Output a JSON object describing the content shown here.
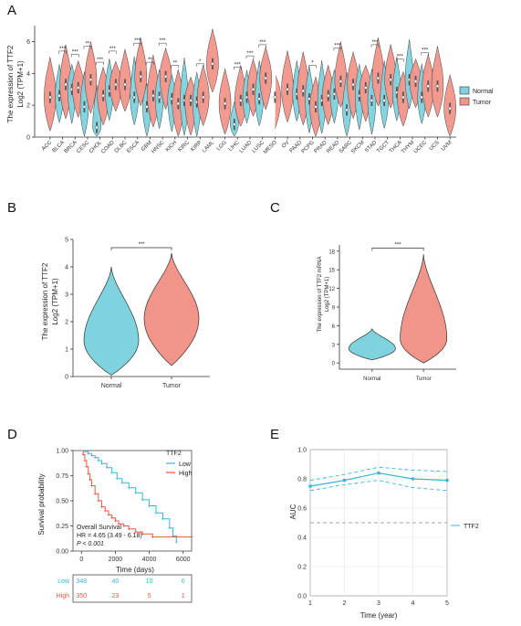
{
  "colors": {
    "normal": "#7ed3df",
    "tumor": "#f1958a",
    "low": "#37b6d8",
    "high": "#e8583f"
  },
  "panels": {
    "A": "A",
    "B": "B",
    "C": "C",
    "D": "D",
    "E": "E"
  },
  "chart_data": [
    {
      "panel": "A",
      "type": "violin",
      "ylabel_line1": "The expression of TTF2",
      "ylabel_line2": "Log2 (TPM+1)",
      "ylim": [
        0,
        7
      ],
      "yticks": [
        0,
        2,
        4,
        6
      ],
      "legend": {
        "normal": "Normal",
        "tumor": "Tumor"
      },
      "categories": [
        {
          "name": "ACC",
          "tumor": 2.5,
          "sig": ""
        },
        {
          "name": "BLCA",
          "normal": 2.6,
          "tumor": 3.3,
          "sig": "***"
        },
        {
          "name": "BRCA",
          "normal": 3.0,
          "tumor": 3.1,
          "sig": "***"
        },
        {
          "name": "CESC",
          "normal": 1.9,
          "tumor": 3.6,
          "sig": "**"
        },
        {
          "name": "CHOL",
          "normal": 0.6,
          "tumor": 2.6,
          "sig": "***"
        },
        {
          "name": "COAD",
          "normal": 2.9,
          "tumor": 3.3,
          "sig": "***"
        },
        {
          "name": "DLBC",
          "tumor": 3.3,
          "sig": ""
        },
        {
          "name": "ESCA",
          "normal": 2.5,
          "tumor": 3.8,
          "sig": "***"
        },
        {
          "name": "GBM",
          "normal": 1.9,
          "tumor": 2.6,
          "sig": "**"
        },
        {
          "name": "HNSC",
          "normal": 2.5,
          "tumor": 3.8,
          "sig": "***"
        },
        {
          "name": "KICH",
          "normal": 2.4,
          "tumor": 2.1,
          "sig": "**"
        },
        {
          "name": "KIRC",
          "normal": 2.3,
          "tumor": 2.3,
          "sig": ""
        },
        {
          "name": "KIRP",
          "normal": 2.2,
          "tumor": 2.5,
          "sig": "*"
        },
        {
          "name": "LAML",
          "tumor": 4.6,
          "sig": ""
        },
        {
          "name": "LGG",
          "tumor": 2.1,
          "sig": ""
        },
        {
          "name": "LIHC",
          "normal": 0.8,
          "tumor": 2.3,
          "sig": "***"
        },
        {
          "name": "LUAD",
          "normal": 2.5,
          "tumor": 3.0,
          "sig": "***"
        },
        {
          "name": "LUSC",
          "normal": 2.4,
          "tumor": 3.7,
          "sig": "***"
        },
        {
          "name": "MESO",
          "tumor": 2.5,
          "sig": ""
        },
        {
          "name": "OV",
          "tumor": 3.0,
          "sig": ""
        },
        {
          "name": "PAAD",
          "normal": 2.7,
          "tumor": 2.9,
          "sig": ""
        },
        {
          "name": "PCPG",
          "normal": 2.4,
          "tumor": 1.9,
          "sig": "*"
        },
        {
          "name": "PRAD",
          "normal": 2.3,
          "tumor": 2.6,
          "sig": ""
        },
        {
          "name": "READ",
          "normal": 2.7,
          "tumor": 3.5,
          "sig": "***"
        },
        {
          "name": "SARC",
          "normal": 1.7,
          "tumor": 3.3,
          "sig": ""
        },
        {
          "name": "SKCM",
          "normal": 2.6,
          "tumor": 3.1,
          "sig": ""
        },
        {
          "name": "STAD",
          "normal": 2.3,
          "tumor": 3.7,
          "sig": "***"
        },
        {
          "name": "TGCT",
          "normal": 2.3,
          "tumor": 3.6,
          "sig": ""
        },
        {
          "name": "THCA",
          "normal": 2.8,
          "tumor": 2.5,
          "sig": "***"
        },
        {
          "name": "THYM",
          "normal": 3.6,
          "tumor": 3.5,
          "sig": ""
        },
        {
          "name": "UCEC",
          "normal": 2.5,
          "tumor": 3.2,
          "sig": "***"
        },
        {
          "name": "UCS",
          "tumor": 3.2,
          "sig": ""
        },
        {
          "name": "UVM",
          "tumor": 1.8,
          "sig": ""
        }
      ]
    },
    {
      "panel": "B",
      "type": "violin",
      "ylabel_line1": "The expression of TTF2",
      "ylabel_line2": "Log2 (TPM+1)",
      "ylim": [
        0,
        5
      ],
      "yticks": [
        0,
        1,
        2,
        3,
        4,
        5
      ],
      "categories": [
        "Normal",
        "Tumor"
      ],
      "medians": [
        1.3,
        2.1
      ],
      "ranges": [
        [
          0.05,
          4.0
        ],
        [
          0.4,
          4.5
        ]
      ],
      "significance": "***"
    },
    {
      "panel": "C",
      "type": "violin",
      "ylabel_line1": "The expression of TTF2 mRNA",
      "ylabel_line2": "Log2 (TPM+1)",
      "ylim": [
        -1,
        19
      ],
      "yticks": [
        0,
        3,
        6,
        9,
        12,
        15,
        18
      ],
      "categories": [
        "Normal",
        "Tumor"
      ],
      "medians": [
        2.3,
        3.8
      ],
      "ranges": [
        [
          0.5,
          5.5
        ],
        [
          0.0,
          17.5
        ]
      ],
      "significance": "***"
    },
    {
      "panel": "D",
      "type": "line",
      "xlabel": "Time (days)",
      "ylabel": "Survival probability",
      "xlim": [
        -500,
        6500
      ],
      "ylim": [
        0,
        1
      ],
      "xticks": [
        0,
        2000,
        4000,
        6000
      ],
      "yticks": [
        "0.00",
        "0.25",
        "0.50",
        "0.75",
        "1.00"
      ],
      "legend_title": "TTF2",
      "series": [
        {
          "name": "Low",
          "x": [
            0,
            200,
            400,
            600,
            800,
            1000,
            1200,
            1500,
            1800,
            2100,
            2400,
            2800,
            3200,
            3600,
            4000,
            4400,
            4800,
            5200,
            5400,
            5600
          ],
          "y": [
            1.0,
            0.99,
            0.97,
            0.95,
            0.93,
            0.9,
            0.87,
            0.83,
            0.78,
            0.72,
            0.68,
            0.63,
            0.58,
            0.51,
            0.45,
            0.38,
            0.32,
            0.23,
            0.15,
            0.09
          ]
        },
        {
          "name": "High",
          "x": [
            0,
            100,
            200,
            300,
            400,
            500,
            600,
            800,
            1000,
            1200,
            1400,
            1600,
            1800,
            2000,
            2200,
            2500,
            2800,
            3200,
            3600,
            4200,
            6500
          ],
          "y": [
            1.0,
            0.96,
            0.9,
            0.84,
            0.77,
            0.71,
            0.65,
            0.57,
            0.5,
            0.44,
            0.4,
            0.36,
            0.33,
            0.3,
            0.27,
            0.25,
            0.22,
            0.19,
            0.17,
            0.14,
            0.14
          ]
        }
      ],
      "annotation": {
        "line1": "Overall Survival",
        "line2": "HR = 4.65 (3.49 - 6.18)",
        "line3": "P < 0.001"
      },
      "risk_table": {
        "times": [
          0,
          2000,
          4000,
          6000
        ],
        "rows": [
          {
            "name": "Low",
            "counts": [
              "348",
              "40",
              "10",
              "0"
            ]
          },
          {
            "name": "High",
            "counts": [
              "350",
              "23",
              "5",
              "1"
            ]
          }
        ]
      }
    },
    {
      "panel": "E",
      "type": "line",
      "xlabel": "Time (year)",
      "ylabel": "AUC",
      "xlim": [
        1,
        5
      ],
      "ylim": [
        0,
        1
      ],
      "xticks": [
        1,
        2,
        3,
        4,
        5
      ],
      "yticks": [
        "0.0",
        "0.2",
        "0.4",
        "0.6",
        "0.8",
        "1.0"
      ],
      "legend": "TTF2",
      "series": [
        {
          "name": "TTF2",
          "x": [
            1,
            2,
            3,
            4,
            5
          ],
          "y": [
            0.75,
            0.79,
            0.84,
            0.8,
            0.79
          ]
        },
        {
          "name": "upper",
          "x": [
            1,
            2,
            3,
            4,
            5
          ],
          "y": [
            0.79,
            0.83,
            0.88,
            0.86,
            0.85
          ]
        },
        {
          "name": "lower",
          "x": [
            1,
            2,
            3,
            4,
            5
          ],
          "y": [
            0.72,
            0.76,
            0.79,
            0.74,
            0.72
          ]
        },
        {
          "name": "reference",
          "x": [
            1,
            5
          ],
          "y": [
            0.5,
            0.5
          ]
        }
      ]
    }
  ]
}
